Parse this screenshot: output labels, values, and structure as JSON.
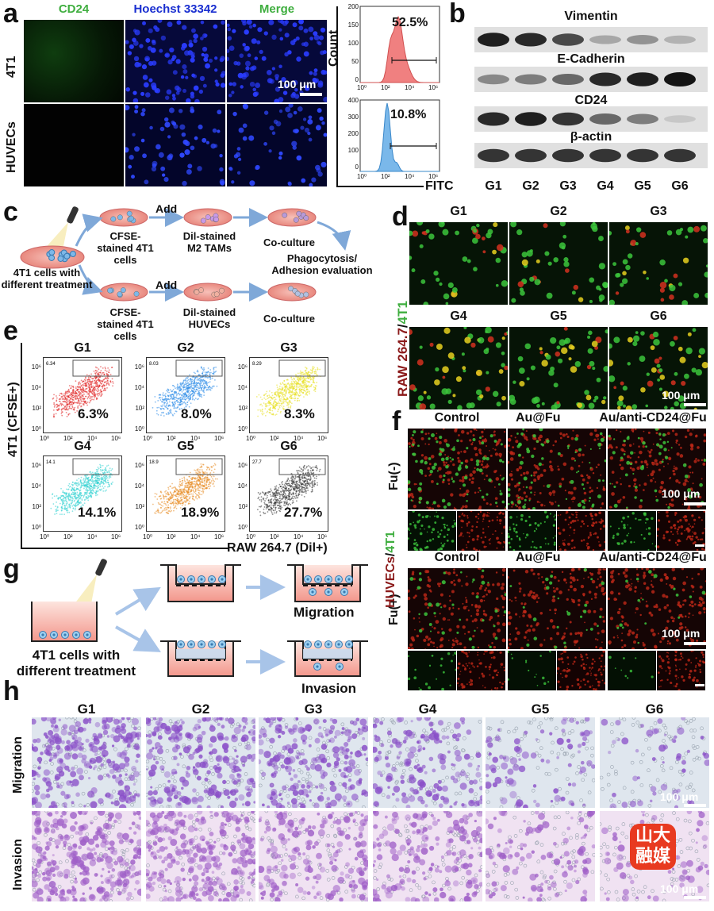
{
  "panel_a": {
    "label": "a",
    "col_headers": [
      "CD24",
      "Hoechst 33342",
      "Merge"
    ],
    "col_colors": [
      "#3fae3f",
      "#1a2fd0",
      "#3fae3f"
    ],
    "row_labels": [
      "4T1",
      "HUVECs"
    ],
    "scale": "100 μm",
    "histogram": {
      "y_label": "Count",
      "x_label": "FITC",
      "top_percent": "52.5%",
      "bottom_percent": "10.8%",
      "top_yticks": [
        "200",
        "150",
        "100",
        "50",
        "0"
      ],
      "bottom_yticks": [
        "400",
        "300",
        "200",
        "100",
        "0"
      ],
      "xticks": [
        "10⁰",
        "10²",
        "10⁴",
        "10⁶"
      ],
      "top_color": "#f08080",
      "bottom_color": "#7ab8ea"
    }
  },
  "panel_b": {
    "label": "b",
    "proteins": [
      "Vimentin",
      "E-Cadherin",
      "CD24",
      "β-actin"
    ],
    "groups": [
      "G1",
      "G2",
      "G3",
      "G4",
      "G5",
      "G6"
    ],
    "band_intensity": {
      "Vimentin": [
        0.95,
        0.9,
        0.75,
        0.3,
        0.4,
        0.25
      ],
      "E-Cadherin": [
        0.45,
        0.5,
        0.6,
        0.9,
        0.95,
        1.0
      ],
      "CD24": [
        0.9,
        0.95,
        0.85,
        0.6,
        0.5,
        0.15
      ],
      "β-actin": [
        0.85,
        0.85,
        0.85,
        0.85,
        0.85,
        0.85
      ]
    }
  },
  "panel_c": {
    "label": "c",
    "start": "4T1 cells with different treatment",
    "add1": "Add",
    "add2": "Add",
    "top_cells": "CFSE-stained 4T1 cells",
    "top_partner": "Dil-stained M2 TAMs",
    "top_result": "Co-culture",
    "eval": "Phagocytosis/ Adhesion evaluation",
    "bottom_cells": "CFSE-stained 4T1 cells",
    "bottom_partner": "Dil-stained HUVECs",
    "bottom_result": "Co-culture"
  },
  "panel_d": {
    "label": "d",
    "groups": [
      "G1",
      "G2",
      "G3",
      "G4",
      "G5",
      "G6"
    ],
    "y_label_red": "RAW 264.7",
    "y_label_sep": "/",
    "y_label_green": "4T1",
    "scale": "100 μm"
  },
  "panel_e": {
    "label": "e",
    "groups": [
      "G1",
      "G2",
      "G3",
      "G4",
      "G5",
      "G6"
    ],
    "percents": [
      "6.3%",
      "8.0%",
      "8.3%",
      "14.1%",
      "18.9%",
      "27.7%"
    ],
    "gate_values": [
      "6.34",
      "8.03",
      "8.29",
      "14.1",
      "18.9",
      "27.7"
    ],
    "colors": [
      "#e02020",
      "#2a8be8",
      "#e8e020",
      "#2ad0d0",
      "#e88a20",
      "#303030"
    ],
    "y_label": "4T1 (CFSE+)",
    "x_label": "RAW 264.7 (Dil+)",
    "yticks": [
      "10⁶",
      "10⁴",
      "10²",
      "10⁰"
    ],
    "xticks": [
      "10⁰",
      "10²",
      "10⁴",
      "10⁶"
    ]
  },
  "panel_f": {
    "label": "f",
    "headers_top": [
      "Control",
      "Au@Fu",
      "Au/anti-CD24@Fu"
    ],
    "headers_bottom": [
      "Control",
      "Au@Fu",
      "Au/anti-CD24@Fu"
    ],
    "row_top": "Fu(-)",
    "row_bottom": "Fu(+)",
    "y_label_red": "HUVECs",
    "y_label_sep": "/",
    "y_label_green": "4T1",
    "scale": "100 μm"
  },
  "panel_g": {
    "label": "g",
    "start": "4T1 cells with different treatment",
    "migration": "Migration",
    "invasion": "Invasion"
  },
  "panel_h": {
    "label": "h",
    "groups": [
      "G1",
      "G2",
      "G3",
      "G4",
      "G5",
      "G6"
    ],
    "rows": [
      "Migration",
      "Invasion"
    ],
    "scale": "100 μm",
    "density_migration": [
      0.8,
      0.75,
      0.7,
      0.5,
      0.25,
      0.15
    ],
    "density_invasion": [
      0.9,
      0.85,
      0.6,
      0.55,
      0.35,
      0.2
    ],
    "watermark": "山大融媒"
  }
}
